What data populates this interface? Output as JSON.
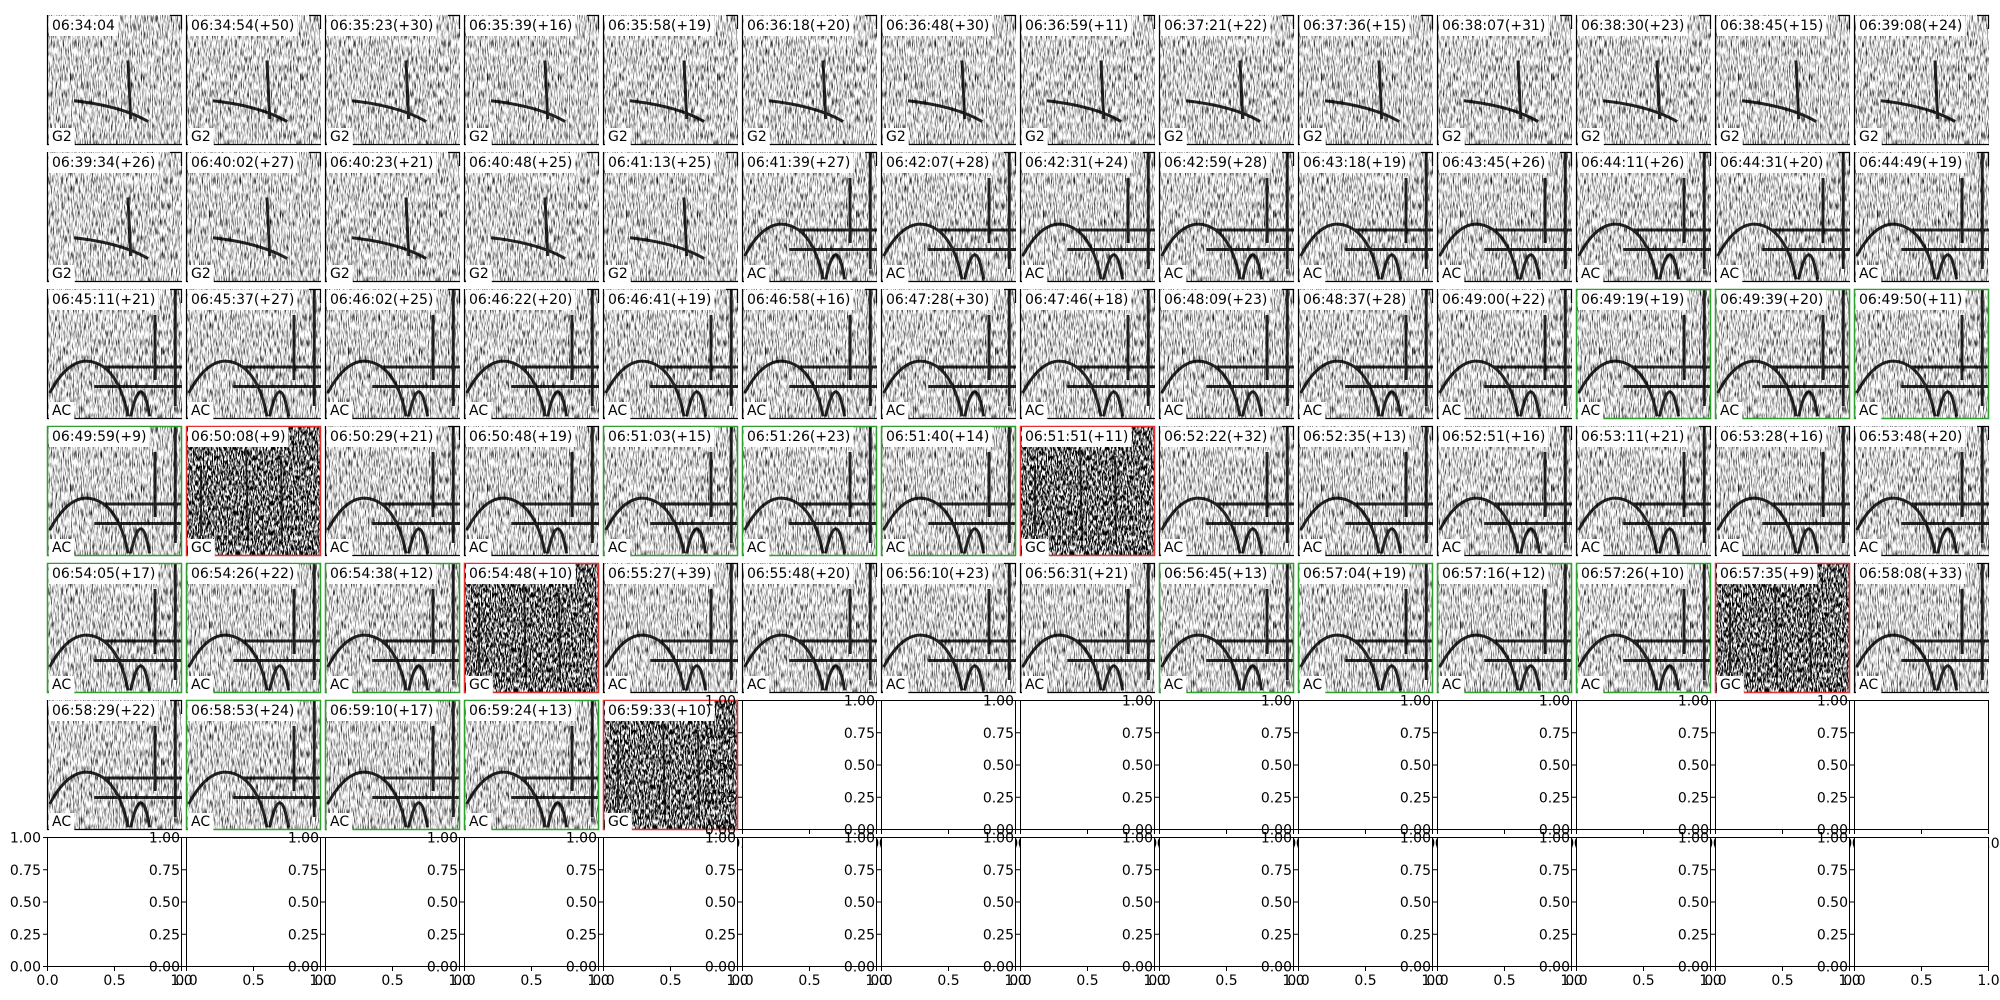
{
  "panels": [
    {
      "time": "06:34:04",
      "label": "G2",
      "frame": "black"
    },
    {
      "time": "06:34:54(+50)",
      "label": "G2",
      "frame": "black"
    },
    {
      "time": "06:35:23(+30)",
      "label": "G2",
      "frame": "black"
    },
    {
      "time": "06:35:39(+16)",
      "label": "G2",
      "frame": "black"
    },
    {
      "time": "06:35:58(+19)",
      "label": "G2",
      "frame": "black"
    },
    {
      "time": "06:36:18(+20)",
      "label": "G2",
      "frame": "black"
    },
    {
      "time": "06:36:48(+30)",
      "label": "G2",
      "frame": "black"
    },
    {
      "time": "06:36:59(+11)",
      "label": "G2",
      "frame": "black"
    },
    {
      "time": "06:37:21(+22)",
      "label": "G2",
      "frame": "black"
    },
    {
      "time": "06:37:36(+15)",
      "label": "G2",
      "frame": "black"
    },
    {
      "time": "06:38:07(+31)",
      "label": "G2",
      "frame": "black"
    },
    {
      "time": "06:38:30(+23)",
      "label": "G2",
      "frame": "black"
    },
    {
      "time": "06:38:45(+15)",
      "label": "G2",
      "frame": "black"
    },
    {
      "time": "06:39:08(+24)",
      "label": "G2",
      "frame": "black"
    },
    {
      "time": "06:39:34(+26)",
      "label": "G2",
      "frame": "black"
    },
    {
      "time": "06:40:02(+27)",
      "label": "G2",
      "frame": "black"
    },
    {
      "time": "06:40:23(+21)",
      "label": "G2",
      "frame": "black"
    },
    {
      "time": "06:40:48(+25)",
      "label": "G2",
      "frame": "black"
    },
    {
      "time": "06:41:13(+25)",
      "label": "G2",
      "frame": "black"
    },
    {
      "time": "06:41:39(+27)",
      "label": "AC",
      "frame": "black"
    },
    {
      "time": "06:42:07(+28)",
      "label": "AC",
      "frame": "black"
    },
    {
      "time": "06:42:31(+24)",
      "label": "AC",
      "frame": "black"
    },
    {
      "time": "06:42:59(+28)",
      "label": "AC",
      "frame": "black"
    },
    {
      "time": "06:43:18(+19)",
      "label": "AC",
      "frame": "black"
    },
    {
      "time": "06:43:45(+26)",
      "label": "AC",
      "frame": "black"
    },
    {
      "time": "06:44:11(+26)",
      "label": "AC",
      "frame": "black"
    },
    {
      "time": "06:44:31(+20)",
      "label": "AC",
      "frame": "black"
    },
    {
      "time": "06:44:49(+19)",
      "label": "AC",
      "frame": "black"
    },
    {
      "time": "06:45:11(+21)",
      "label": "AC",
      "frame": "black"
    },
    {
      "time": "06:45:37(+27)",
      "label": "AC",
      "frame": "black"
    },
    {
      "time": "06:46:02(+25)",
      "label": "AC",
      "frame": "black"
    },
    {
      "time": "06:46:22(+20)",
      "label": "AC",
      "frame": "black"
    },
    {
      "time": "06:46:41(+19)",
      "label": "AC",
      "frame": "black"
    },
    {
      "time": "06:46:58(+16)",
      "label": "AC",
      "frame": "black"
    },
    {
      "time": "06:47:28(+30)",
      "label": "AC",
      "frame": "black"
    },
    {
      "time": "06:47:46(+18)",
      "label": "AC",
      "frame": "black"
    },
    {
      "time": "06:48:09(+23)",
      "label": "AC",
      "frame": "black"
    },
    {
      "time": "06:48:37(+28)",
      "label": "AC",
      "frame": "black"
    },
    {
      "time": "06:49:00(+22)",
      "label": "AC",
      "frame": "black"
    },
    {
      "time": "06:49:19(+19)",
      "label": "AC",
      "frame": "green"
    },
    {
      "time": "06:49:39(+20)",
      "label": "AC",
      "frame": "green"
    },
    {
      "time": "06:49:50(+11)",
      "label": "AC",
      "frame": "green"
    },
    {
      "time": "06:49:59(+9)",
      "label": "AC",
      "frame": "green"
    },
    {
      "time": "06:50:08(+9)",
      "label": "GC",
      "frame": "red"
    },
    {
      "time": "06:50:29(+21)",
      "label": "AC",
      "frame": "black"
    },
    {
      "time": "06:50:48(+19)",
      "label": "AC",
      "frame": "black"
    },
    {
      "time": "06:51:03(+15)",
      "label": "AC",
      "frame": "green"
    },
    {
      "time": "06:51:26(+23)",
      "label": "AC",
      "frame": "green"
    },
    {
      "time": "06:51:40(+14)",
      "label": "AC",
      "frame": "green"
    },
    {
      "time": "06:51:51(+11)",
      "label": "GC",
      "frame": "red"
    },
    {
      "time": "06:52:22(+32)",
      "label": "AC",
      "frame": "black"
    },
    {
      "time": "06:52:35(+13)",
      "label": "AC",
      "frame": "black"
    },
    {
      "time": "06:52:51(+16)",
      "label": "AC",
      "frame": "black"
    },
    {
      "time": "06:53:11(+21)",
      "label": "AC",
      "frame": "black"
    },
    {
      "time": "06:53:28(+16)",
      "label": "AC",
      "frame": "black"
    },
    {
      "time": "06:53:48(+20)",
      "label": "AC",
      "frame": "black"
    },
    {
      "time": "06:54:05(+17)",
      "label": "AC",
      "frame": "green"
    },
    {
      "time": "06:54:26(+22)",
      "label": "AC",
      "frame": "green"
    },
    {
      "time": "06:54:38(+12)",
      "label": "AC",
      "frame": "green"
    },
    {
      "time": "06:54:48(+10)",
      "label": "GC",
      "frame": "red"
    },
    {
      "time": "06:55:27(+39)",
      "label": "AC",
      "frame": "black"
    },
    {
      "time": "06:55:48(+20)",
      "label": "AC",
      "frame": "black"
    },
    {
      "time": "06:56:10(+23)",
      "label": "AC",
      "frame": "black"
    },
    {
      "time": "06:56:31(+21)",
      "label": "AC",
      "frame": "black"
    },
    {
      "time": "06:56:45(+13)",
      "label": "AC",
      "frame": "green"
    },
    {
      "time": "06:57:04(+19)",
      "label": "AC",
      "frame": "green"
    },
    {
      "time": "06:57:16(+12)",
      "label": "AC",
      "frame": "green"
    },
    {
      "time": "06:57:26(+10)",
      "label": "AC",
      "frame": "green"
    },
    {
      "time": "06:57:35(+9)",
      "label": "GC",
      "frame": "red"
    },
    {
      "time": "06:58:08(+33)",
      "label": "AC",
      "frame": "black"
    },
    {
      "time": "06:58:29(+22)",
      "label": "AC",
      "frame": "black"
    },
    {
      "time": "06:58:53(+24)",
      "label": "AC",
      "frame": "green"
    },
    {
      "time": "06:59:10(+17)",
      "label": "AC",
      "frame": "green"
    },
    {
      "time": "06:59:24(+13)",
      "label": "AC",
      "frame": "green"
    },
    {
      "time": "06:59:33(+10)",
      "label": "GC",
      "frame": "red"
    }
  ],
  "empty_axes": {
    "xticks": [
      "0.0",
      "0.5",
      "1.0"
    ],
    "yticks": [
      "0.00",
      "0.25",
      "0.50",
      "0.75",
      "1.00"
    ]
  }
}
